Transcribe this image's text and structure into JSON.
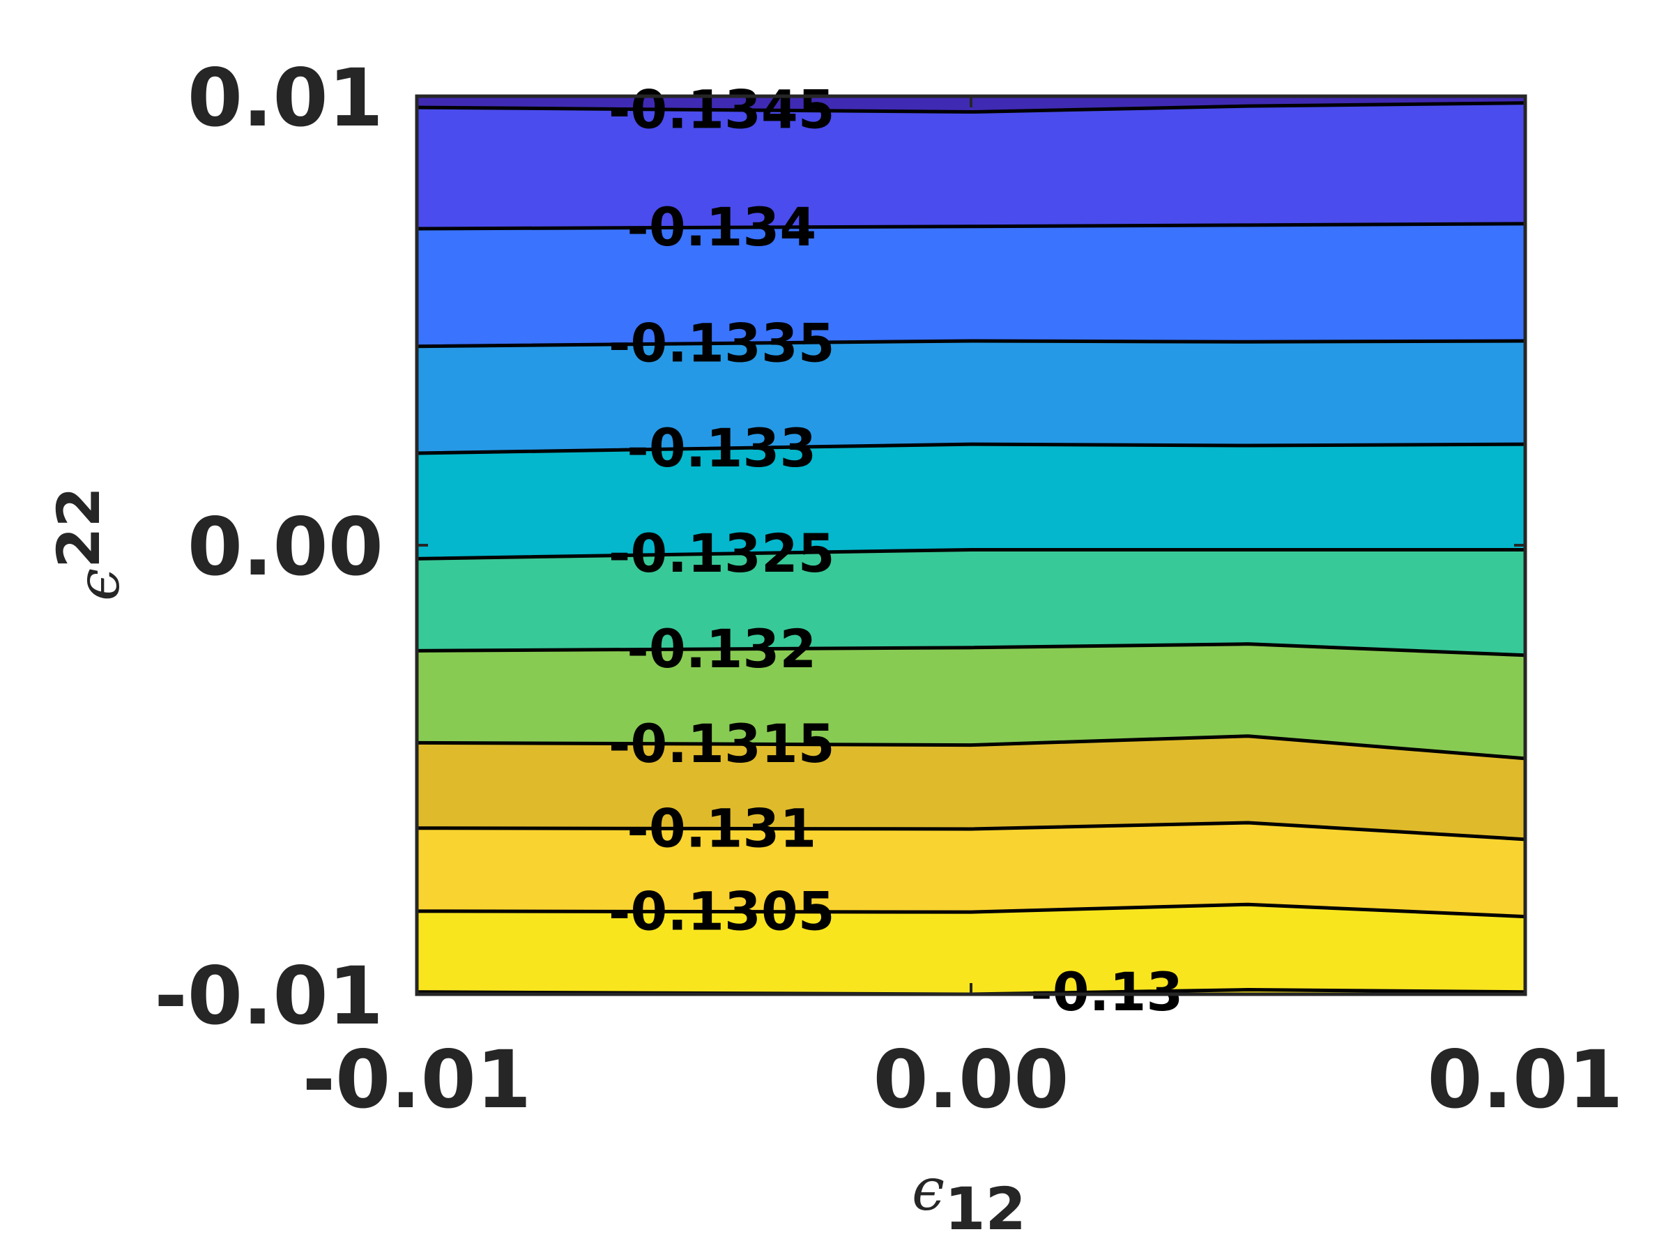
{
  "chart_data": {
    "type": "contour",
    "title": "",
    "xlabel": {
      "symbol": "ϵ",
      "subscript": "12"
    },
    "ylabel": {
      "symbol": "ϵ",
      "subscript": "22"
    },
    "xlim": [
      -0.01,
      0.01
    ],
    "ylim": [
      -0.01,
      0.01
    ],
    "x_ticks": [
      "-0.01",
      "0.00",
      "0.01"
    ],
    "y_ticks": [
      "-0.01",
      "0.00",
      "0.01"
    ],
    "grid": false,
    "x_nodes": [
      -0.01,
      0.0,
      0.005,
      0.01
    ],
    "levels": [
      -0.1345,
      -0.134,
      -0.1335,
      -0.133,
      -0.1325,
      -0.132,
      -0.1315,
      -0.131,
      -0.1305,
      -0.13
    ],
    "contours": [
      {
        "level": "-0.1345",
        "y": [
          0.00975,
          0.00965,
          0.00978,
          0.00985
        ]
      },
      {
        "level": "-0.134",
        "y": [
          0.00705,
          0.0071,
          0.00713,
          0.00716
        ]
      },
      {
        "level": "-0.1335",
        "y": [
          0.00443,
          0.00455,
          0.00453,
          0.00455
        ]
      },
      {
        "level": "-0.133",
        "y": [
          0.00205,
          0.00225,
          0.00222,
          0.00225
        ]
      },
      {
        "level": "-0.1325",
        "y": [
          -0.0003,
          -0.0001,
          -0.0001,
          -0.0001
        ]
      },
      {
        "level": "-0.132",
        "y": [
          -0.00235,
          -0.00228,
          -0.0022,
          -0.00245
        ]
      },
      {
        "level": "-0.1315",
        "y": [
          -0.0044,
          -0.00445,
          -0.00425,
          -0.00475
        ]
      },
      {
        "level": "-0.131",
        "y": [
          -0.0063,
          -0.00632,
          -0.00618,
          -0.00655
        ]
      },
      {
        "level": "-0.1305",
        "y": [
          -0.00815,
          -0.00817,
          -0.008,
          -0.00827
        ]
      },
      {
        "level": "-0.13",
        "y": [
          -0.00995,
          -0.01,
          -0.0099,
          -0.00995
        ]
      }
    ],
    "band_colors": [
      "#3f2ab4",
      "#4a4ced",
      "#3a73fe",
      "#2699e6",
      "#04b7cc",
      "#38c998",
      "#88cb53",
      "#dfbb2b",
      "#f9d32f",
      "#f8e51e"
    ]
  }
}
